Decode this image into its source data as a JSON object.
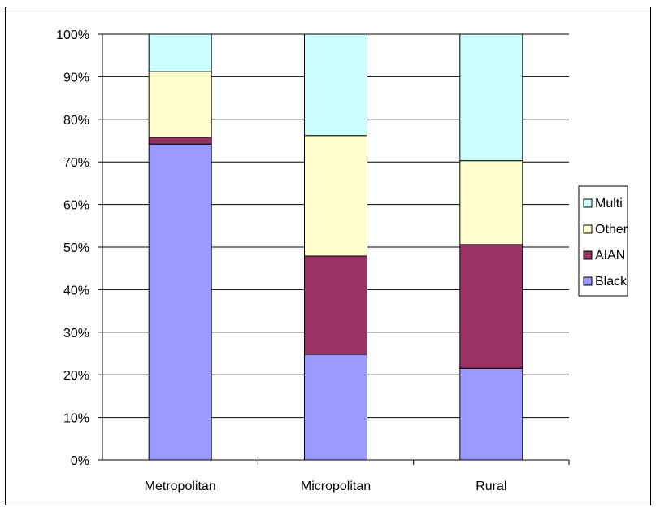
{
  "chart_data": {
    "type": "bar",
    "stacked": true,
    "percent": true,
    "categories": [
      "Metropolitan",
      "Micropolitan",
      "Rural"
    ],
    "series": [
      {
        "name": "Black",
        "color": "#9999ff",
        "values": [
          74.2,
          24.8,
          21.5
        ]
      },
      {
        "name": "AIAN",
        "color": "#993366",
        "values": [
          1.6,
          23.1,
          29.1
        ]
      },
      {
        "name": "Other",
        "color": "#ffffcc",
        "values": [
          15.4,
          28.3,
          19.7
        ]
      },
      {
        "name": "Multi",
        "color": "#ccffff",
        "values": [
          8.8,
          23.8,
          29.7
        ]
      }
    ],
    "y_ticks": [
      "0%",
      "10%",
      "20%",
      "30%",
      "40%",
      "50%",
      "60%",
      "70%",
      "80%",
      "90%",
      "100%"
    ],
    "ylim": [
      0,
      100
    ],
    "grid": true,
    "legend_position": "right",
    "legend_order": [
      "Multi",
      "Other",
      "AIAN",
      "Black"
    ]
  }
}
